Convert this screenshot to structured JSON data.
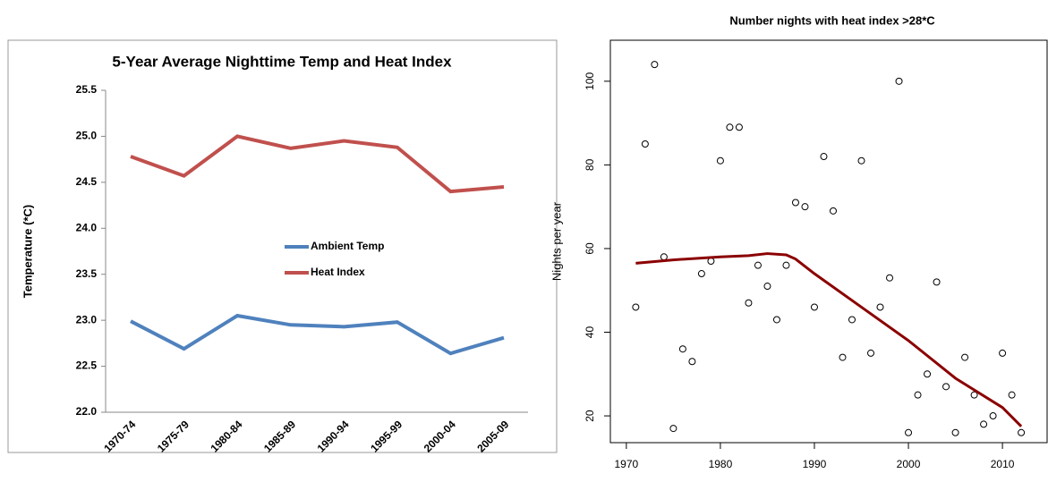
{
  "chart_data": [
    {
      "type": "line",
      "title": "5-Year Average Nighttime Temp and Heat Index",
      "y_label": "Temperature (*C)",
      "categories": [
        "1970-74",
        "1975-79",
        "1980-84",
        "1985-89",
        "1990-94",
        "1995-99",
        "2000-04",
        "2005-09"
      ],
      "series": [
        {
          "name": "Ambient Temp",
          "color": "#4f81bd",
          "values": [
            22.99,
            22.69,
            23.05,
            22.95,
            22.93,
            22.98,
            22.64,
            22.81
          ]
        },
        {
          "name": "Heat Index",
          "color": "#c0504d",
          "values": [
            24.78,
            24.57,
            25.0,
            24.87,
            24.95,
            24.88,
            24.4,
            24.45
          ]
        }
      ],
      "ylim": [
        22,
        25.5
      ],
      "yticks": [
        {
          "value": 22,
          "label": "22.0"
        },
        22.5,
        {
          "value": 23,
          "label": "23.0"
        },
        23.5,
        {
          "value": 24,
          "label": "24.0"
        },
        24.5,
        {
          "value": 25,
          "label": "25.0"
        },
        25.5
      ],
      "legend": "center"
    },
    {
      "type": "scatter",
      "title": "Number nights with heat index >28*C",
      "y_label": "Nights per year",
      "x": [
        1971,
        1972,
        1973,
        1974,
        1975,
        1976,
        1977,
        1978,
        1979,
        1980,
        1981,
        1982,
        1983,
        1984,
        1985,
        1986,
        1987,
        1988,
        1989,
        1990,
        1991,
        1992,
        1993,
        1994,
        1995,
        1996,
        1997,
        1998,
        1999,
        2000,
        2001,
        2002,
        2003,
        2004,
        2005,
        2006,
        2007,
        2008,
        2009,
        2010,
        2011,
        2012
      ],
      "values": [
        46,
        85,
        104,
        58,
        17,
        36,
        33,
        54,
        57,
        81,
        89,
        89,
        47,
        56,
        51,
        43,
        56,
        71,
        70,
        46,
        82,
        69,
        34,
        43,
        81,
        35,
        46,
        53,
        100,
        16,
        25,
        30,
        52,
        27,
        16,
        34,
        25,
        18,
        20,
        35,
        25,
        16
      ],
      "color": "#000000",
      "trend": {
        "color": "#8b0000",
        "x": [
          1971,
          1975,
          1980,
          1983,
          1985,
          1987,
          1988,
          1990,
          1995,
          2000,
          2005,
          2010,
          2012
        ],
        "values": [
          56.5,
          57.3,
          58,
          58.3,
          58.8,
          58.5,
          57.5,
          54,
          46,
          38,
          29,
          22,
          17.5
        ]
      },
      "xlim": [
        1968.3,
        2014.75
      ],
      "ylim": [
        13.6,
        109.8
      ],
      "xticks": [
        1970,
        1980,
        1990,
        2000,
        2010
      ],
      "yticks": [
        20,
        40,
        60,
        80,
        100
      ]
    }
  ]
}
